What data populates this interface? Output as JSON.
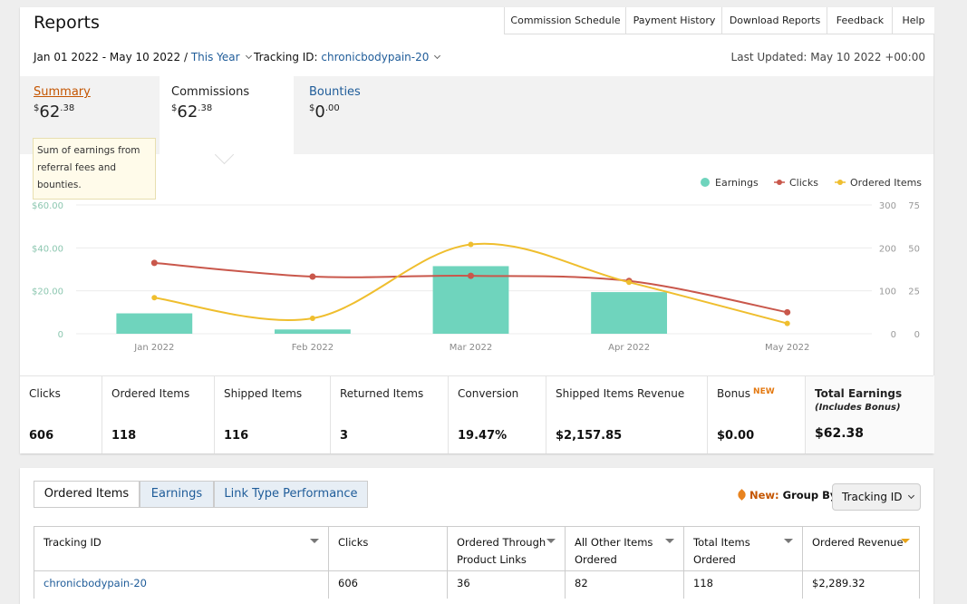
{
  "header": {
    "title": "Reports",
    "nav": [
      "Commission Schedule",
      "Payment History",
      "Download Reports",
      "Feedback",
      "Help"
    ],
    "date_range": "Jan 01 2022 - May 10 2022",
    "separator": "/",
    "period": "This Year",
    "tracking_label": "Tracking ID:",
    "tracking_id": "chronicbodypain-20",
    "last_updated": "Last Updated: May 10 2022 +00:00"
  },
  "tabs": [
    {
      "label": "Summary",
      "currency": "$",
      "whole": "62",
      "fraction": ".38"
    },
    {
      "label": "Commissions",
      "currency": "$",
      "whole": "62",
      "fraction": ".38"
    },
    {
      "label": "Bounties",
      "currency": "$",
      "whole": "0",
      "fraction": ".00"
    }
  ],
  "tooltip": "Sum of earnings from referral fees and bounties.",
  "chart_data": {
    "type": "combo",
    "categories": [
      "Jan 2022",
      "Feb 2022",
      "Mar 2022",
      "Apr 2022",
      "May 2022"
    ],
    "series": [
      {
        "name": "Earnings",
        "type": "bar",
        "color": "#6fd4bd",
        "values": [
          9.5,
          2,
          31.5,
          19.4,
          0
        ]
      },
      {
        "name": "Clicks",
        "type": "line",
        "axis": "y2",
        "color": "#c9574b",
        "values": [
          165,
          133,
          135,
          123,
          50
        ]
      },
      {
        "name": "Ordered Items",
        "type": "line",
        "axis": "y3",
        "color": "#efbe2e",
        "values": [
          21,
          9,
          52,
          30,
          6
        ]
      }
    ],
    "ylim": [
      0,
      60
    ],
    "yticks": [
      0,
      {
        "value": 20,
        "label": "$20.00"
      },
      {
        "value": 40,
        "label": "$40.00"
      },
      {
        "value": 60,
        "label": "$60.00"
      }
    ],
    "y2lim": [
      0,
      300
    ],
    "y2ticks": [
      0,
      100,
      200,
      300
    ],
    "y3lim": [
      0,
      75
    ],
    "y3ticks": [
      0,
      25,
      50,
      75
    ],
    "grid": true,
    "legend": "top-right"
  },
  "stats": [
    {
      "label": "Clicks",
      "value": "606"
    },
    {
      "label": "Ordered Items",
      "value": "118"
    },
    {
      "label": "Shipped Items",
      "value": "116"
    },
    {
      "label": "Returned Items",
      "value": "3"
    },
    {
      "label": "Conversion",
      "value": "19.47%"
    },
    {
      "label": "Shipped Items Revenue",
      "value": "$2,157.85"
    },
    {
      "label": "Bonus",
      "badge": "NEW",
      "value": "$0.00"
    },
    {
      "label": "Total Earnings",
      "note": "(Includes Bonus)",
      "value": "$62.38"
    }
  ],
  "report": {
    "tabs": [
      "Ordered Items",
      "Earnings",
      "Link Type Performance"
    ],
    "new_label": "New:",
    "group_label": "Group By:",
    "group_value": "Tracking ID",
    "table": {
      "headers": [
        "Tracking ID",
        "Clicks",
        "Ordered Through Product Links",
        "All Other Items Ordered",
        "Total Items Ordered",
        "Ordered Revenue"
      ],
      "rows": [
        [
          "chronicbodypain-20",
          "606",
          "36",
          "82",
          "118",
          "$2,289.32"
        ]
      ]
    }
  }
}
